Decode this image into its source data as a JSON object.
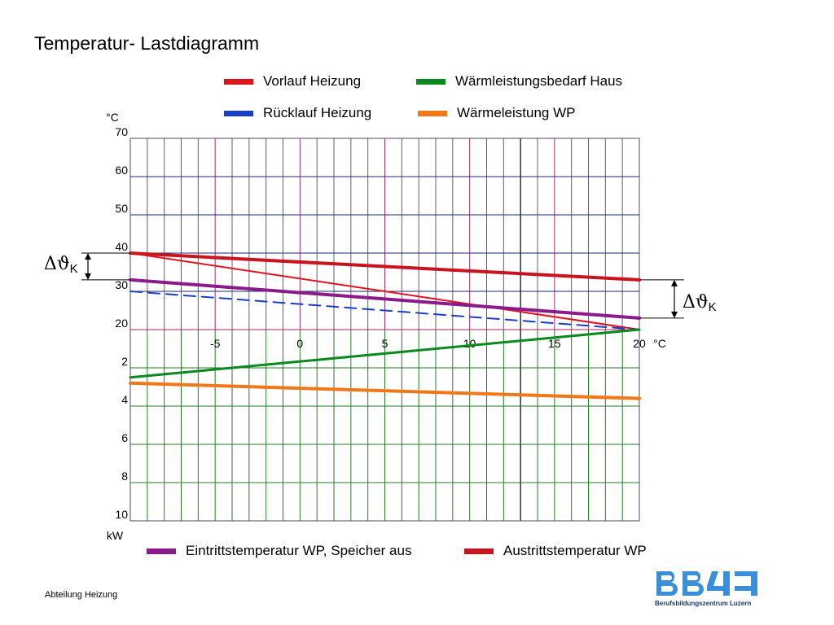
{
  "page_title": "Temperatur- Lastdiagramm",
  "legend_top": [
    {
      "label": "Vorlauf Heizung",
      "color": "#e0141e"
    },
    {
      "label": "Wärmleistungsbedarf Haus",
      "color": "#0a8a1e"
    },
    {
      "label": "Rücklauf Heizung",
      "color": "#1a3fc4"
    },
    {
      "label": "Wärmeleistung WP",
      "color": "#f07818"
    }
  ],
  "legend_bottom": [
    {
      "label": "Eintrittstemperatur WP, Speicher aus",
      "color": "#8b1a8b"
    },
    {
      "label": "Austrittstemperatur WP",
      "color": "#c8141e"
    }
  ],
  "footer": "Abteilung Heizung",
  "logo": {
    "text": "Berufsbildungszentrum Luzern",
    "color": "#3a8fd8"
  },
  "chart_data": {
    "type": "line",
    "x_unit": "°C",
    "x_ticks": [
      -5,
      0,
      5,
      10,
      15,
      20
    ],
    "xlim": [
      -10,
      20
    ],
    "temp_axis": {
      "unit": "°C",
      "ticks": [
        20,
        30,
        40,
        50,
        60,
        70
      ],
      "ylim": [
        20,
        70
      ]
    },
    "power_axis": {
      "unit": "kW",
      "ticks": [
        2,
        4,
        6,
        8,
        10
      ],
      "ylim": [
        0,
        10
      ]
    },
    "delta_label": "Δϑ",
    "delta_subscript": "K",
    "series": [
      {
        "name": "Vorlauf Heizung",
        "axis": "temp",
        "color": "#e0141e",
        "width": 2,
        "dash": false,
        "x": [
          -10,
          20
        ],
        "y": [
          40,
          20
        ]
      },
      {
        "name": "Rücklauf Heizung",
        "axis": "temp",
        "color": "#1a3fc4",
        "width": 2,
        "dash": true,
        "x": [
          -10,
          20
        ],
        "y": [
          30,
          20
        ]
      },
      {
        "name": "Austrittstemperatur WP",
        "axis": "temp",
        "color": "#c8141e",
        "width": 4,
        "dash": false,
        "x": [
          -10,
          20
        ],
        "y": [
          40,
          33
        ]
      },
      {
        "name": "Eintrittstemperatur WP, Speicher aus",
        "axis": "temp",
        "color": "#8b1a8b",
        "width": 4,
        "dash": false,
        "x": [
          -10,
          20
        ],
        "y": [
          33,
          23
        ]
      },
      {
        "name": "Wärmleistungsbedarf Haus",
        "axis": "power",
        "color": "#0a8a1e",
        "width": 3,
        "dash": false,
        "x": [
          -10,
          20
        ],
        "y": [
          2.5,
          0
        ]
      },
      {
        "name": "Wärmeleistung WP",
        "axis": "power",
        "color": "#f07818",
        "width": 4,
        "dash": false,
        "x": [
          -10,
          20
        ],
        "y": [
          2.8,
          3.6
        ]
      }
    ]
  }
}
